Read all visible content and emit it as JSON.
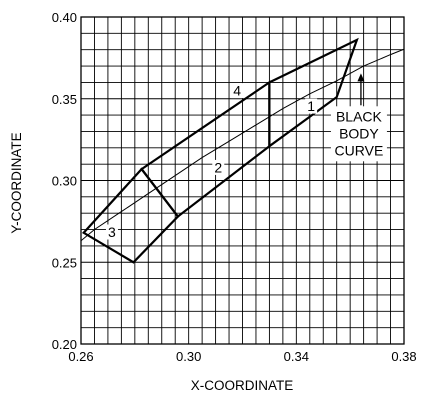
{
  "chart_data": {
    "type": "line",
    "title": "",
    "xlabel": "X-COORDINATE",
    "ylabel": "Y-COORDINATE",
    "xlim": [
      0.26,
      0.38
    ],
    "ylim": [
      0.2,
      0.4
    ],
    "x_ticks": [
      "0.26",
      "0.30",
      "0.34",
      "0.38"
    ],
    "y_ticks": [
      "0.20",
      "0.25",
      "0.30",
      "0.35",
      "0.40"
    ],
    "grid": true,
    "grid_step": {
      "x": 0.005,
      "y": 0.01
    },
    "series": [
      {
        "points": [
          [
            0.257,
            0.259
          ],
          [
            0.265,
            0.27
          ],
          [
            0.275,
            0.281
          ],
          [
            0.285,
            0.292
          ],
          [
            0.295,
            0.303
          ],
          [
            0.305,
            0.314
          ],
          [
            0.315,
            0.324
          ],
          [
            0.325,
            0.334
          ],
          [
            0.335,
            0.344
          ],
          [
            0.345,
            0.353
          ],
          [
            0.355,
            0.361
          ],
          [
            0.365,
            0.37
          ],
          [
            0.375,
            0.377
          ],
          [
            0.381,
            0.381
          ]
        ]
      },
      {
        "label": "1",
        "label_at": [
          0.3455,
          0.3455
        ],
        "points": [
          [
            0.33,
            0.36
          ],
          [
            0.3625,
            0.386
          ],
          [
            0.355,
            0.351
          ],
          [
            0.33,
            0.321
          ]
        ]
      },
      {
        "label": "2",
        "label_at": [
          0.311,
          0.308
        ],
        "points": [
          [
            0.2825,
            0.307
          ],
          [
            0.33,
            0.36
          ],
          [
            0.33,
            0.321
          ],
          [
            0.296,
            0.278
          ]
        ]
      },
      {
        "label": "3",
        "label_at": [
          0.2715,
          0.2685
        ],
        "points": [
          [
            0.261,
            0.268
          ],
          [
            0.2825,
            0.307
          ],
          [
            0.296,
            0.278
          ],
          [
            0.2795,
            0.25
          ]
        ]
      },
      {
        "label": "4",
        "label_at": [
          0.318,
          0.355
        ],
        "points": []
      }
    ],
    "annotations": [
      {
        "text_lines": [
          "BLACK",
          "BODY",
          "CURVE"
        ],
        "arrow_from": [
          0.364,
          0.346
        ],
        "arrow_to": [
          0.364,
          0.3655
        ]
      }
    ]
  }
}
